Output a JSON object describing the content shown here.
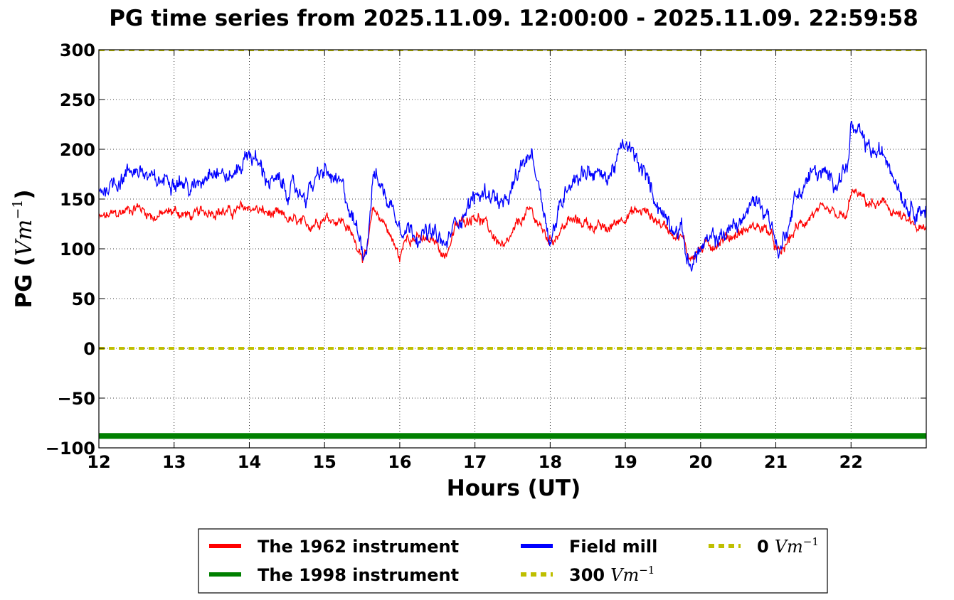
{
  "chart_data": {
    "type": "line",
    "title": "PG time series from 2025.11.09. 12:00:00 - 2025.11.09. 22:59:58",
    "xlabel": "Hours (UT)",
    "ylabel_prefix": "PG (",
    "ylabel_math": "Vm",
    "ylabel_sup": "−1",
    "ylabel_suffix": ")",
    "xlim": [
      12,
      23
    ],
    "ylim": [
      -100,
      300
    ],
    "xticks": [
      12,
      13,
      14,
      15,
      16,
      17,
      18,
      19,
      20,
      21,
      22
    ],
    "xtick_labels": [
      "12",
      "13",
      "14",
      "15",
      "16",
      "17",
      "18",
      "19",
      "20",
      "21",
      "22"
    ],
    "yticks": [
      300,
      250,
      200,
      150,
      100,
      50,
      0,
      -50,
      -100
    ],
    "ytick_labels": [
      "300",
      "250",
      "200",
      "150",
      "100",
      "50",
      "0",
      "−50",
      "−100"
    ],
    "grid": true,
    "legend_position": "bottom-center",
    "series": [
      {
        "name": "The 1962 instrument",
        "color": "#ff0000",
        "x": [
          12.0,
          12.25,
          12.5,
          12.75,
          13.0,
          13.25,
          13.5,
          13.75,
          14.0,
          14.25,
          14.5,
          14.75,
          15.0,
          15.25,
          15.4,
          15.55,
          15.65,
          15.8,
          16.0,
          16.1,
          16.3,
          16.5,
          16.6,
          16.75,
          17.0,
          17.2,
          17.4,
          17.6,
          17.75,
          17.9,
          18.0,
          18.25,
          18.5,
          18.75,
          19.0,
          19.25,
          19.5,
          19.75,
          19.85,
          20.0,
          20.25,
          20.5,
          20.75,
          20.9,
          21.05,
          21.25,
          21.5,
          21.75,
          21.95,
          22.0,
          22.25,
          22.5,
          22.75,
          23.0
        ],
        "values": [
          130,
          135,
          143,
          132,
          138,
          132,
          140,
          136,
          142,
          135,
          130,
          122,
          133,
          128,
          108,
          92,
          138,
          127,
          90,
          115,
          108,
          106,
          92,
          122,
          136,
          118,
          98,
          128,
          138,
          118,
          108,
          128,
          126,
          118,
          135,
          138,
          124,
          112,
          92,
          100,
          108,
          116,
          123,
          118,
          92,
          118,
          136,
          134,
          130,
          158,
          145,
          142,
          126,
          116
        ]
      },
      {
        "name": "The 1998 instrument",
        "color": "#008000",
        "x": [
          12.0,
          23.0
        ],
        "values": [
          -88,
          -88
        ]
      },
      {
        "name": "Field mill",
        "color": "#0000ff",
        "x": [
          12.0,
          12.25,
          12.5,
          12.75,
          13.0,
          13.25,
          13.5,
          13.75,
          14.0,
          14.25,
          14.5,
          14.75,
          15.0,
          15.25,
          15.4,
          15.55,
          15.65,
          15.8,
          16.0,
          16.1,
          16.3,
          16.5,
          16.6,
          16.75,
          17.0,
          17.2,
          17.4,
          17.6,
          17.75,
          17.9,
          18.0,
          18.25,
          18.5,
          18.75,
          19.0,
          19.25,
          19.5,
          19.75,
          19.85,
          20.0,
          20.25,
          20.5,
          20.75,
          20.9,
          21.05,
          21.25,
          21.5,
          21.75,
          21.95,
          22.0,
          22.25,
          22.5,
          22.75,
          23.0
        ],
        "values": [
          158,
          170,
          182,
          165,
          175,
          158,
          185,
          170,
          198,
          170,
          160,
          155,
          178,
          158,
          125,
          96,
          178,
          155,
          128,
          122,
          115,
          112,
          100,
          128,
          152,
          158,
          140,
          178,
          198,
          148,
          108,
          170,
          180,
          170,
          205,
          175,
          135,
          118,
          82,
          100,
          112,
          125,
          150,
          135,
          95,
          150,
          178,
          168,
          182,
          222,
          198,
          190,
          145,
          140
        ]
      }
    ],
    "reference_lines": [
      {
        "name": "300",
        "value": 300,
        "color": "#bfbf00"
      },
      {
        "name": "0",
        "value": 0,
        "color": "#bfbf00"
      }
    ],
    "legend": {
      "unit_math": "Vm",
      "unit_sup": "−1",
      "items": [
        {
          "label": "The 1962 instrument",
          "color": "#ff0000",
          "style": "solid",
          "has_unit": false
        },
        {
          "label": "The 1998 instrument",
          "color": "#008000",
          "style": "solid",
          "has_unit": false
        },
        {
          "label": "Field mill",
          "color": "#0000ff",
          "style": "solid",
          "has_unit": false
        },
        {
          "label": "300",
          "color": "#bfbf00",
          "style": "dotted",
          "has_unit": true
        },
        {
          "label": "0",
          "color": "#bfbf00",
          "style": "dotted",
          "has_unit": true
        }
      ]
    }
  }
}
